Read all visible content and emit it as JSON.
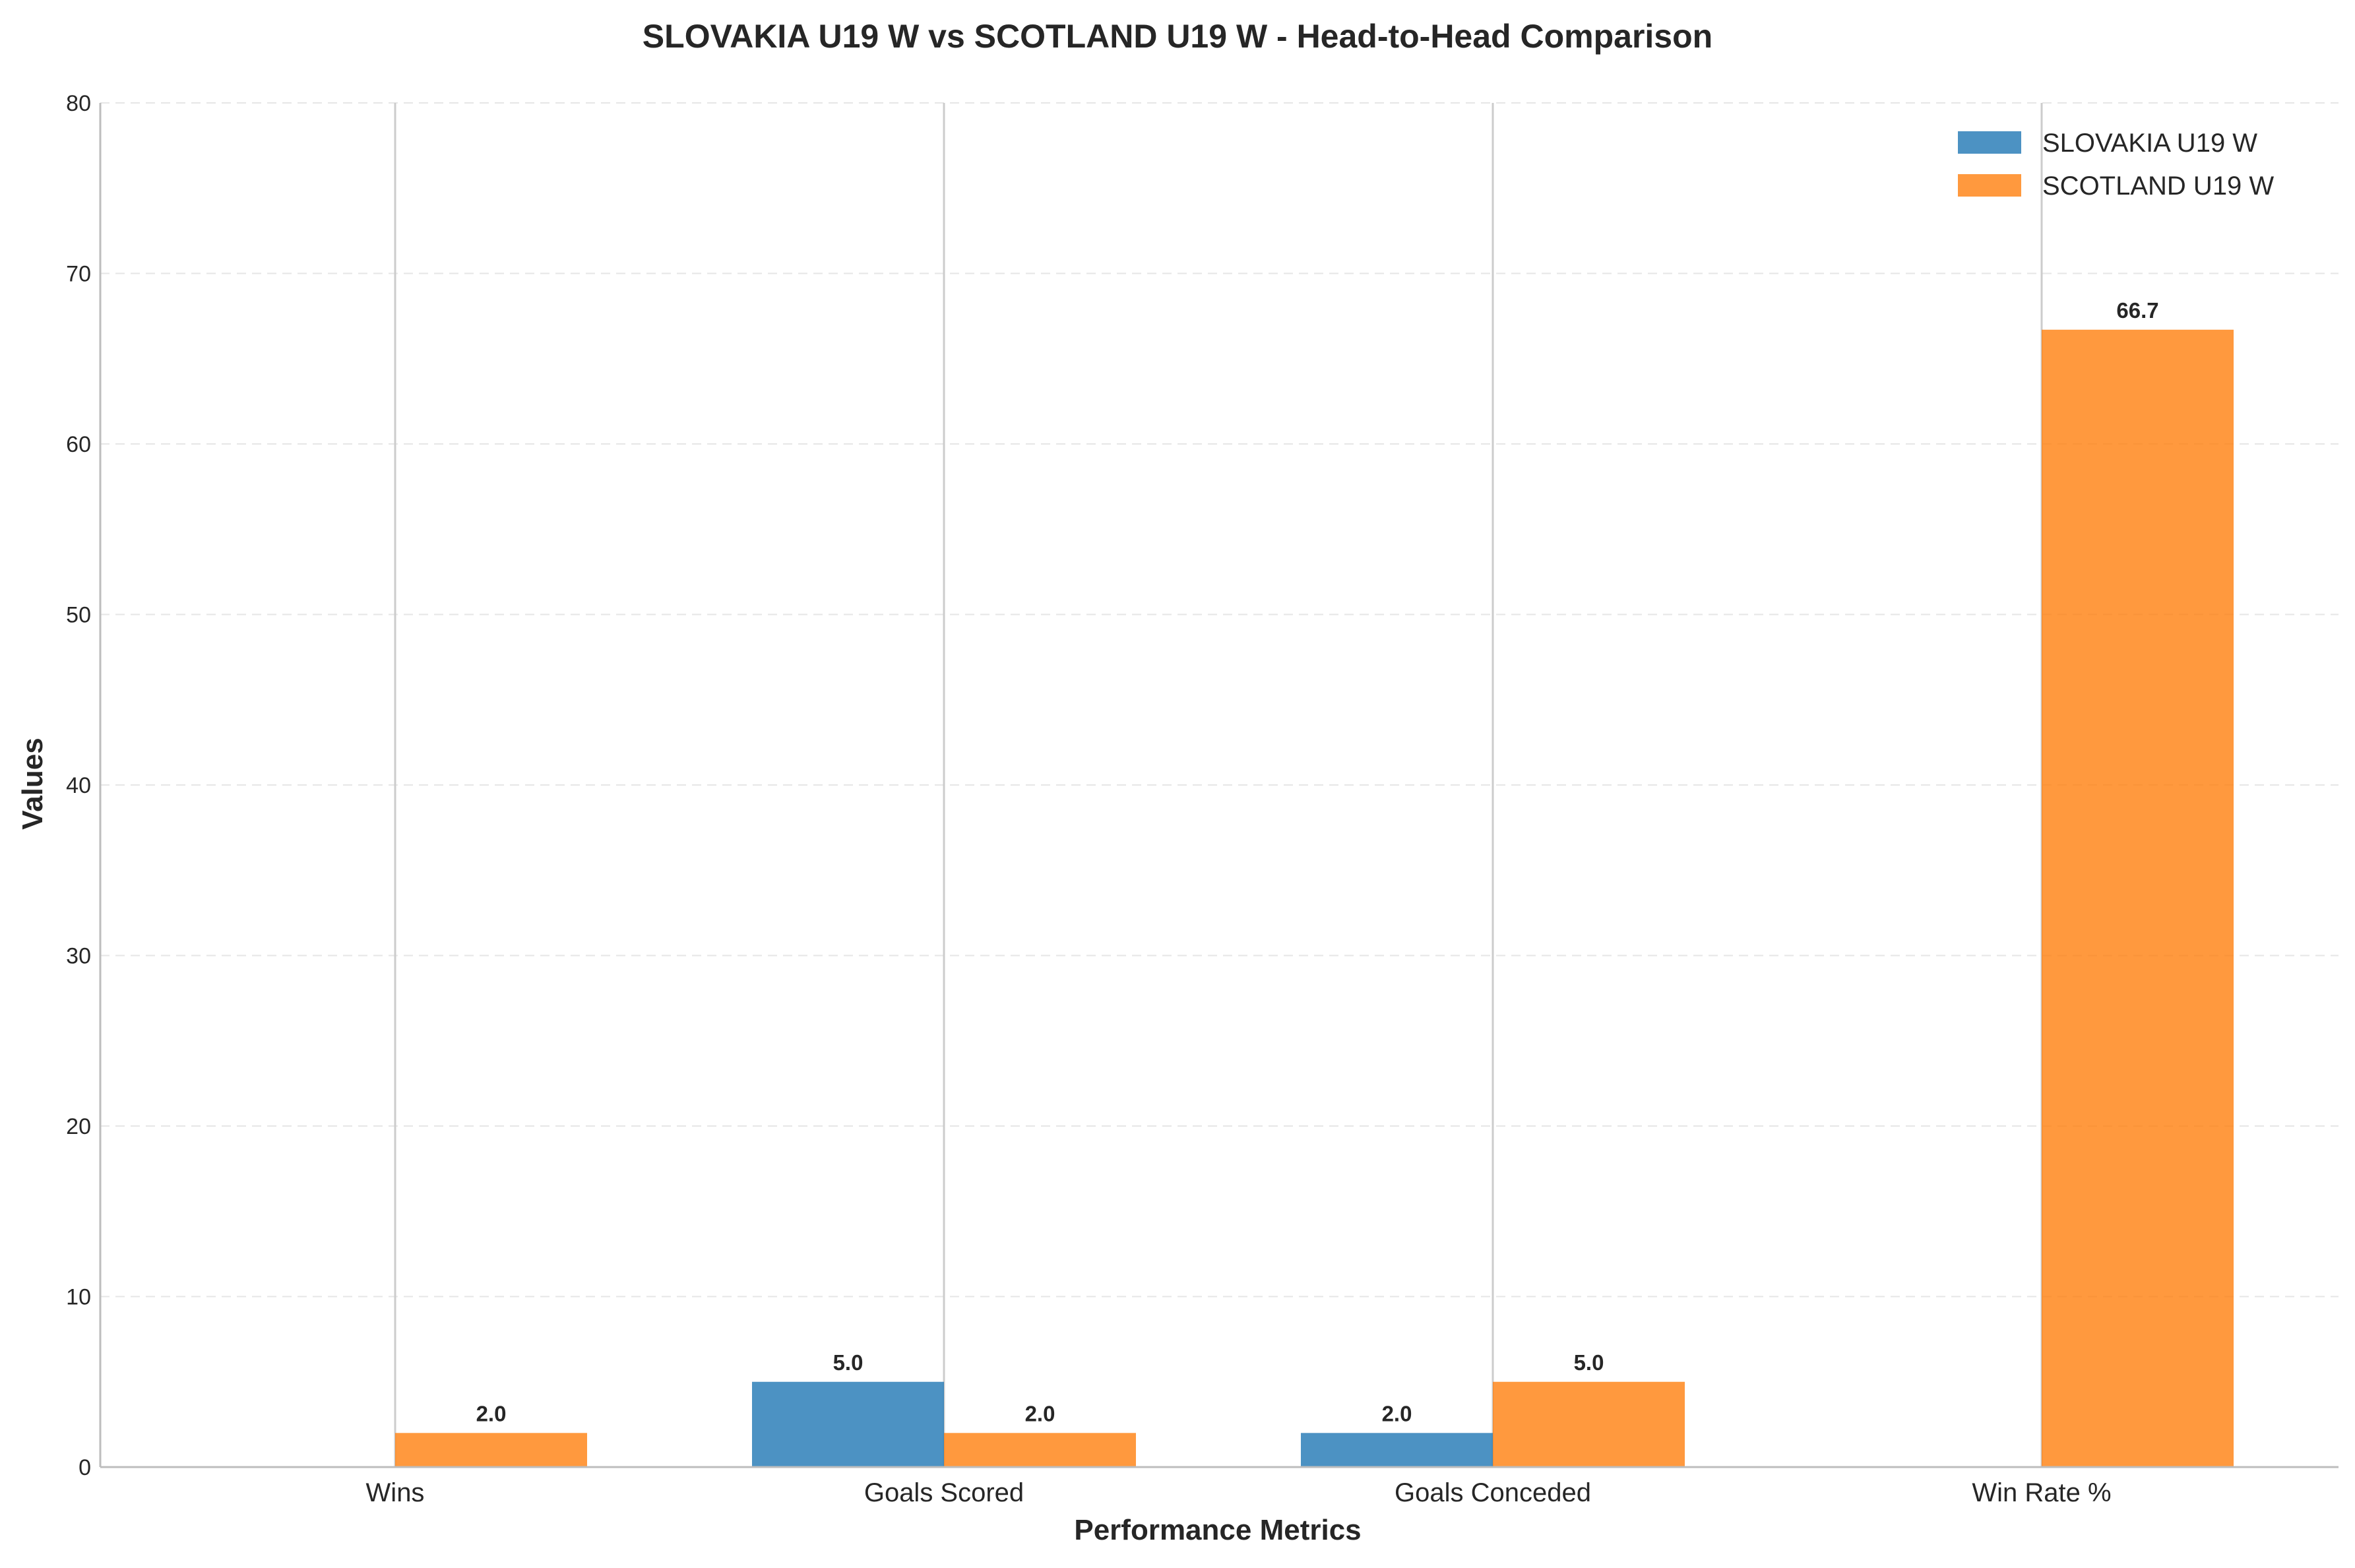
{
  "chart_data": {
    "type": "bar",
    "title": "SLOVAKIA U19 W vs SCOTLAND U19 W - Head-to-Head Comparison",
    "xlabel": "Performance Metrics",
    "ylabel": "Values",
    "categories": [
      "Wins",
      "Goals Scored",
      "Goals Conceded",
      "Win Rate %"
    ],
    "series": [
      {
        "name": "SLOVAKIA U19 W",
        "values": [
          0,
          5.0,
          2.0,
          0
        ],
        "color": "#1f77b4"
      },
      {
        "name": "SCOTLAND U19 W",
        "values": [
          2.0,
          2.0,
          5.0,
          66.7
        ],
        "color": "#ff7f0e"
      }
    ],
    "data_labels": [
      [
        null,
        "5.0",
        "2.0",
        null
      ],
      [
        "2.0",
        "2.0",
        "5.0",
        "66.7"
      ]
    ],
    "ylim": [
      0,
      80
    ],
    "yticks": [
      "0",
      "10",
      "20",
      "30",
      "40",
      "50",
      "60",
      "70",
      "80"
    ],
    "grid": "y-dashed",
    "legend": "top-right"
  }
}
